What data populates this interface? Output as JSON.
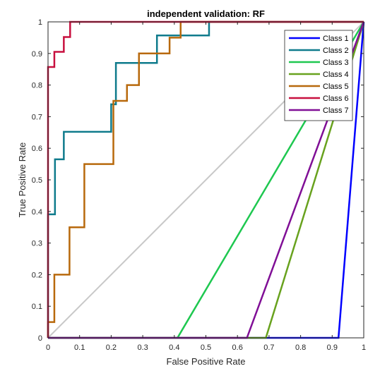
{
  "chart_data": {
    "type": "line",
    "title": "independent validation: RF",
    "xlabel": "False Positive Rate",
    "ylabel": "True Positive Rate",
    "xlim": [
      0,
      1
    ],
    "ylim": [
      0,
      1
    ],
    "x_ticks": [
      "0",
      "0.1",
      "0.2",
      "0.3",
      "0.4",
      "0.5",
      "0.6",
      "0.7",
      "0.8",
      "0.9",
      "1"
    ],
    "y_ticks": [
      "0",
      "0.1",
      "0.2",
      "0.3",
      "0.4",
      "0.5",
      "0.6",
      "0.7",
      "0.8",
      "0.9",
      "1"
    ],
    "grid": false,
    "legend_position": "top-right",
    "diagonal_color": "#c8c8c8",
    "series": [
      {
        "name": "Class 1",
        "color": "#0000ff",
        "x": [
          0,
          0.92,
          1
        ],
        "y": [
          0,
          0,
          1
        ]
      },
      {
        "name": "Class 2",
        "color": "#0f7b8c",
        "x": [
          0,
          0,
          0.022,
          0.022,
          0.05,
          0.05,
          0.2,
          0.2,
          0.215,
          0.215,
          0.345,
          0.345,
          0.51,
          0.51,
          1
        ],
        "y": [
          0,
          0.391,
          0.391,
          0.565,
          0.565,
          0.652,
          0.652,
          0.739,
          0.739,
          0.87,
          0.87,
          0.957,
          0.957,
          1,
          1
        ]
      },
      {
        "name": "Class 3",
        "color": "#1ec850",
        "x": [
          0,
          0.41,
          1
        ],
        "y": [
          0,
          0,
          1
        ]
      },
      {
        "name": "Class 4",
        "color": "#68a21e",
        "x": [
          0,
          0.69,
          1
        ],
        "y": [
          0,
          0,
          1
        ]
      },
      {
        "name": "Class 5",
        "color": "#b8690c",
        "x": [
          0,
          0,
          0.02,
          0.02,
          0.068,
          0.068,
          0.115,
          0.115,
          0.207,
          0.207,
          0.25,
          0.25,
          0.288,
          0.288,
          0.385,
          0.385,
          0.42,
          0.42,
          0.57,
          0.57,
          1
        ],
        "y": [
          0,
          0.05,
          0.05,
          0.2,
          0.2,
          0.35,
          0.35,
          0.55,
          0.55,
          0.75,
          0.75,
          0.8,
          0.8,
          0.9,
          0.9,
          0.95,
          0.95,
          1,
          1,
          1,
          1
        ]
      },
      {
        "name": "Class 6",
        "color": "#c8103f",
        "x": [
          0,
          0,
          0.02,
          0.02,
          0.05,
          0.05,
          0.07,
          0.07,
          1
        ],
        "y": [
          0,
          0.857,
          0.857,
          0.905,
          0.905,
          0.952,
          0.952,
          1,
          1
        ]
      },
      {
        "name": "Class 7",
        "color": "#800f96",
        "x": [
          0,
          0.63,
          1
        ],
        "y": [
          0,
          0,
          1
        ]
      }
    ]
  }
}
